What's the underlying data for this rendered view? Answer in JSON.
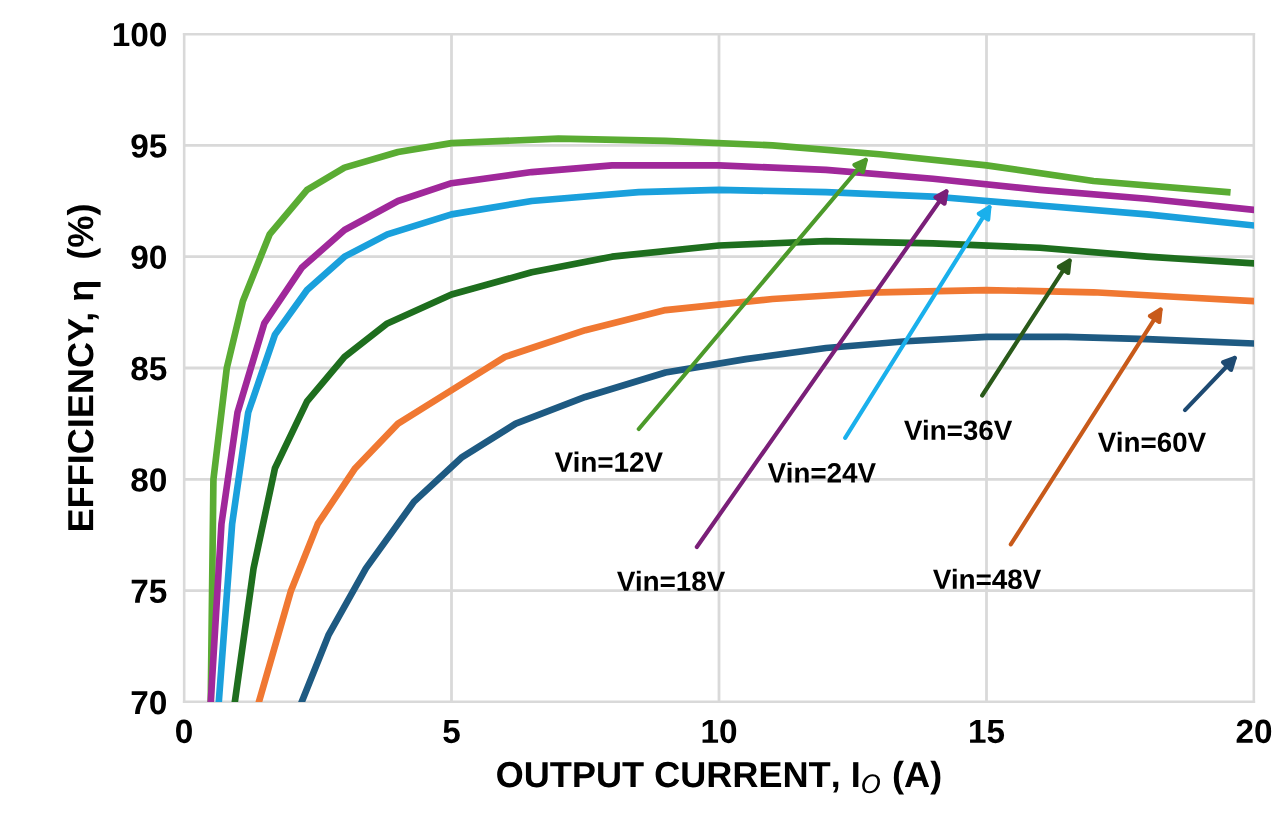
{
  "chart_data": {
    "type": "line",
    "xlabel": "OUTPUT CURRENT, I$_{O}$ (A)",
    "ylabel": "EFFICIENCY, η  (%)",
    "xlim": [
      0,
      20
    ],
    "xticks": [
      0,
      5,
      10,
      15,
      20
    ],
    "ylim": [
      70,
      100
    ],
    "yticks": [
      70,
      75,
      80,
      85,
      90,
      95,
      100
    ],
    "grid": true,
    "legend": false,
    "marker": "none",
    "line_style": "solid",
    "series": [
      {
        "color": "#5aac33",
        "x": [
          0.5,
          0.55,
          0.8,
          1.1,
          1.6,
          2.3,
          3,
          4,
          5,
          7,
          9,
          11,
          13,
          15,
          17,
          19.5
        ],
        "values": [
          70,
          80,
          85,
          88,
          91,
          93,
          94,
          94.7,
          95.1,
          95.3,
          95.2,
          95,
          94.6,
          94.1,
          93.4,
          92.9
        ]
      },
      {
        "color": "#a0289a",
        "x": [
          0.5,
          0.7,
          1.0,
          1.5,
          2.2,
          3,
          4,
          5,
          6.5,
          8,
          10,
          12,
          14,
          16,
          18,
          20
        ],
        "values": [
          70,
          78,
          83,
          87,
          89.5,
          91.2,
          92.5,
          93.3,
          93.8,
          94.1,
          94.1,
          93.9,
          93.5,
          93,
          92.6,
          92.1
        ]
      },
      {
        "color": "#1aa0dc",
        "x": [
          0.65,
          0.9,
          1.2,
          1.7,
          2.3,
          3,
          3.8,
          5,
          6.5,
          8.5,
          10,
          12,
          14,
          16,
          18,
          20
        ],
        "values": [
          70,
          78,
          83,
          86.5,
          88.5,
          90,
          91,
          91.9,
          92.5,
          92.9,
          93,
          92.9,
          92.7,
          92.3,
          91.9,
          91.4
        ]
      },
      {
        "color": "#1e6e1e",
        "x": [
          0.95,
          1.3,
          1.7,
          2.3,
          3,
          3.8,
          5,
          6.5,
          8,
          10,
          12,
          14,
          16,
          18,
          20
        ],
        "values": [
          70,
          76,
          80.5,
          83.5,
          85.5,
          87,
          88.3,
          89.3,
          90,
          90.5,
          90.7,
          90.6,
          90.4,
          90,
          89.7
        ]
      },
      {
        "color": "#f07832",
        "x": [
          1.4,
          2,
          2.5,
          3.2,
          4,
          5,
          6,
          7.5,
          9,
          11,
          13,
          15,
          17,
          18.5,
          20
        ],
        "values": [
          70,
          75,
          78,
          80.5,
          82.5,
          84,
          85.5,
          86.7,
          87.6,
          88.1,
          88.4,
          88.5,
          88.4,
          88.2,
          88
        ]
      },
      {
        "color": "#1e5a82",
        "x": [
          2.2,
          2.7,
          3.4,
          4.3,
          5.2,
          6.2,
          7.5,
          9,
          10.5,
          12,
          13.5,
          15,
          16.5,
          18,
          20
        ],
        "values": [
          70,
          73,
          76,
          79,
          81,
          82.5,
          83.7,
          84.8,
          85.4,
          85.9,
          86.2,
          86.4,
          86.4,
          86.3,
          86.1
        ]
      }
    ],
    "annotations": [
      {
        "text": "Vin=12V",
        "x": 12.8,
        "y": 94.5
      },
      {
        "text": "Vin=18V",
        "x": 14.3,
        "y": 93.1
      },
      {
        "text": "Vin=24V",
        "x": 15.1,
        "y": 92.4
      },
      {
        "text": "Vin=36V",
        "x": 16.6,
        "y": 90.0
      },
      {
        "text": "Vin=48V",
        "x": 18.3,
        "y": 87.8
      },
      {
        "text": "Vin=60V",
        "x": 19.7,
        "y": 85.6
      }
    ]
  }
}
